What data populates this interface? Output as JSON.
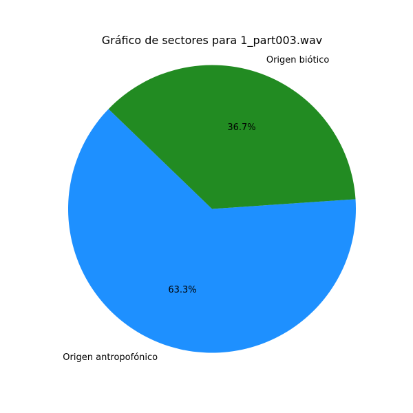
{
  "chart_data": {
    "type": "pie",
    "title": "Gráfico de sectores para 1_part003.wav",
    "labels": [
      "Origen antropofónico",
      "Origen biótico"
    ],
    "values": [
      63.3,
      36.7
    ],
    "percent_labels": [
      "63.3%",
      "36.7%"
    ],
    "colors": [
      "#1e90ff",
      "#228b22"
    ],
    "start_angle_deg": 136,
    "direction": "counterclockwise"
  }
}
